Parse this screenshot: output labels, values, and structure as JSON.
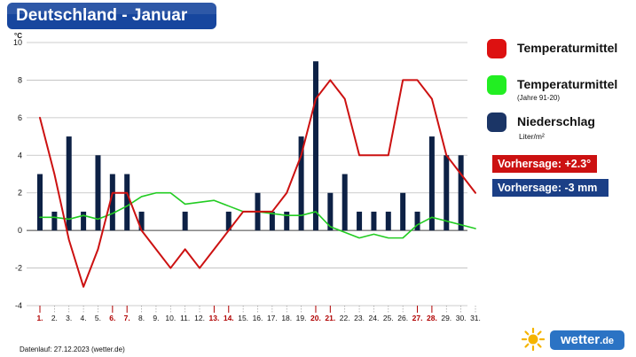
{
  "title": "Deutschland - Januar",
  "legend": {
    "temp_label": "Temperaturmittel",
    "avg_label": "Temperaturmittel",
    "avg_sub": "(Jahre 91-20)",
    "precip_label": "Niederschlag",
    "precip_unit": "Liter/m²"
  },
  "forecast": {
    "temp": "Vorhersage: +2.3°",
    "precip": "Vorhersage: -3 mm"
  },
  "footer": "Datenlauf: 27.12.2023 (wetter.de)",
  "logo": {
    "main": "wetter",
    "suffix": ".de"
  },
  "colors": {
    "temp": "#cc1111",
    "avg": "#22cc22",
    "precip": "#0d2145",
    "legend_temp": "#dd1111",
    "legend_avg": "#22ee22",
    "legend_precip": "#1b3566",
    "title_bg": "#17469e",
    "weekend": "#b00000"
  },
  "chart_data": {
    "type": "bar+line",
    "title": "Deutschland - Januar",
    "ylabel": "°C",
    "ylim": [
      -4,
      10
    ],
    "yticks": [
      -4,
      -2,
      0,
      2,
      4,
      6,
      8,
      10
    ],
    "categories": [
      "1.",
      "2.",
      "3.",
      "4.",
      "5.",
      "6.",
      "7.",
      "8.",
      "9.",
      "10.",
      "11.",
      "12.",
      "13.",
      "14.",
      "15.",
      "16.",
      "17.",
      "18.",
      "19.",
      "20.",
      "21.",
      "22.",
      "23.",
      "24.",
      "25.",
      "26.",
      "27.",
      "28.",
      "29.",
      "30.",
      "31."
    ],
    "weekend_days": [
      1,
      6,
      7,
      13,
      14,
      20,
      21,
      27,
      28
    ],
    "series": [
      {
        "name": "Niederschlag",
        "type": "bar",
        "values": [
          3,
          1,
          5,
          1,
          4,
          3,
          3,
          1,
          0,
          0,
          1,
          0,
          0,
          1,
          0,
          2,
          1,
          1,
          5,
          9,
          2,
          3,
          1,
          1,
          1,
          2,
          1,
          5,
          4,
          4,
          0
        ]
      },
      {
        "name": "Temperaturmittel",
        "type": "line",
        "values": [
          6,
          3,
          -0.5,
          -3,
          -1,
          2,
          2,
          0,
          -1,
          -2,
          -1,
          -2,
          -1,
          0,
          1,
          1,
          1,
          2,
          4,
          7,
          8,
          7,
          4,
          4,
          4,
          8,
          8,
          7,
          4,
          3,
          2
        ]
      },
      {
        "name": "Temperaturmittel (Jahre 91-20)",
        "type": "line",
        "values": [
          0.7,
          0.7,
          0.6,
          0.8,
          0.6,
          0.9,
          1.3,
          1.8,
          2.0,
          2.0,
          1.4,
          1.5,
          1.6,
          1.3,
          1.0,
          1.0,
          0.9,
          0.8,
          0.8,
          1.0,
          0.2,
          -0.1,
          -0.4,
          -0.2,
          -0.4,
          -0.4,
          0.3,
          0.7,
          0.5,
          0.3,
          0.1
        ]
      }
    ]
  }
}
